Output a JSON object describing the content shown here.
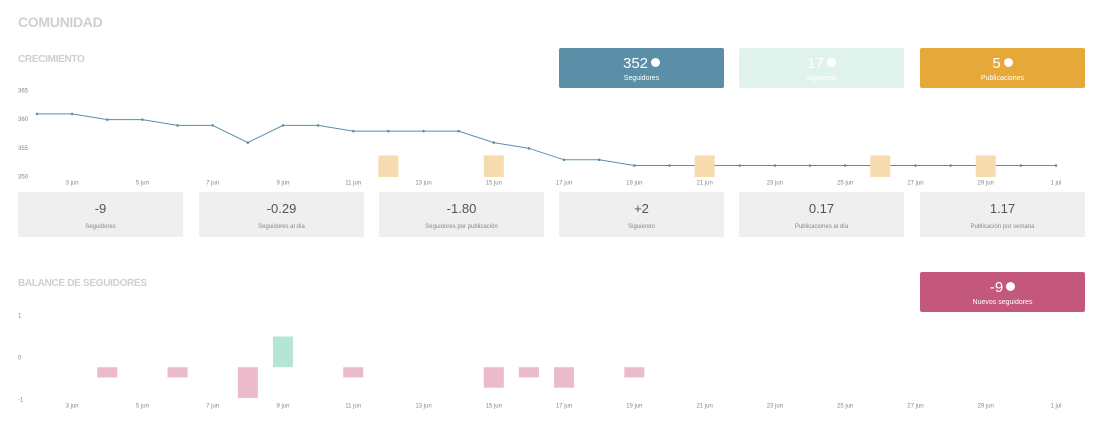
{
  "heading": "COMUNIDAD",
  "growth": {
    "heading": "CRECIMIENTO",
    "cards": [
      {
        "value": "352",
        "label": "Seguidores",
        "color": "#5b8fa8"
      },
      {
        "value": "17",
        "label": "Siguiendo",
        "color": "#dff3ec"
      },
      {
        "value": "5",
        "label": "Publicaciones",
        "color": "#e7a83a"
      }
    ]
  },
  "metrics": [
    {
      "value": "-9",
      "label": "Seguidores"
    },
    {
      "value": "-0.29",
      "label": "Seguidores al día"
    },
    {
      "value": "-1.80",
      "label": "Seguidores por publicación"
    },
    {
      "value": "+2",
      "label": "Siguiendo"
    },
    {
      "value": "0.17",
      "label": "Publicaciones al día"
    },
    {
      "value": "1.17",
      "label": "Publicación por semana"
    }
  ],
  "balance": {
    "heading": "BALANCE DE SEGUIDORES",
    "card": {
      "value": "-9",
      "label": "Nuevos seguidores",
      "color": "#c4587c"
    }
  },
  "chart_data": [
    {
      "type": "line",
      "categories": [
        null,
        "3 jun",
        null,
        "5 jun",
        null,
        "7 jun",
        null,
        "9 jun",
        null,
        "11 jun",
        null,
        "13 jun",
        null,
        "15 jun",
        null,
        "17 jun",
        null,
        "19 jun",
        null,
        "21 jun",
        null,
        "23 jun",
        null,
        "25 jun",
        null,
        "27 jun",
        null,
        "29 jun",
        null,
        "1 jul"
      ],
      "series": [
        {
          "color": "#5b8fa8",
          "values": [
            361,
            361,
            360,
            360,
            359,
            359,
            356,
            359,
            359,
            358,
            358,
            358,
            358,
            356,
            355,
            353,
            353,
            352,
            352,
            352,
            352,
            352,
            352,
            352,
            352,
            352,
            352,
            352,
            352,
            352
          ]
        },
        {
          "color": "#f5dbae",
          "axis": "y2",
          "type": "bar",
          "values": [
            null,
            null,
            null,
            null,
            null,
            null,
            null,
            null,
            null,
            null,
            1,
            null,
            null,
            1,
            null,
            null,
            null,
            null,
            null,
            1,
            null,
            null,
            null,
            null,
            1,
            null,
            null,
            1,
            null,
            null
          ]
        }
      ],
      "ylim": [
        350,
        365
      ],
      "yticks": [
        350,
        355,
        360,
        365
      ],
      "y2lim": [
        0,
        4
      ]
    },
    {
      "type": "bar",
      "categories": [
        null,
        "3 jun",
        null,
        "5 jun",
        null,
        "7 jun",
        null,
        "9 jun",
        null,
        "11 jun",
        null,
        "13 jun",
        null,
        "15 jun",
        null,
        "17 jun",
        null,
        "19 jun",
        null,
        "21 jun",
        null,
        "23 jun",
        null,
        "25 jun",
        null,
        "27 jun",
        null,
        "29 jun",
        null,
        "1 jul"
      ],
      "values": [
        null,
        0,
        -1,
        0,
        -1,
        0,
        -3,
        3,
        0,
        -1,
        0,
        0,
        0,
        -2,
        -1,
        -2,
        0,
        -1,
        0,
        0,
        0,
        0,
        0,
        0,
        0,
        0,
        0,
        0,
        0,
        0
      ],
      "positive_color": "#b5e6d4",
      "negative_color": "#ebbacb",
      "ylim": [
        -1,
        1
      ],
      "yticks": [
        -1,
        0,
        1
      ],
      "y2lim": [
        -3.2,
        5
      ]
    }
  ]
}
